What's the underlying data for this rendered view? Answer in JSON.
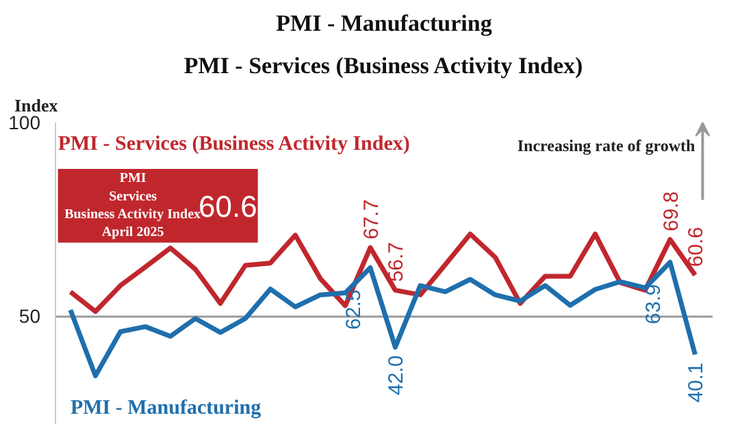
{
  "chart_data": {
    "type": "line",
    "title": "PMI - Manufacturing",
    "subtitle": "PMI - Services (Business Activity Index)",
    "ylabel": "Index",
    "categories": [
      null,
      null,
      null,
      null,
      null,
      null,
      null,
      null,
      null,
      null,
      null,
      null,
      null,
      null,
      null,
      null,
      null,
      null,
      null,
      null,
      null,
      null,
      null,
      null,
      null,
      null
    ],
    "series": [
      {
        "name": "PMI - Services (Business Activity Index)",
        "color": "#c0272d",
        "values": [
          56.3,
          51.2,
          57.9,
          62.7,
          67.6,
          62.1,
          53.3,
          63.1,
          63.7,
          70.9,
          59.7,
          52.7,
          67.7,
          56.7,
          55.5,
          63.3,
          71.2,
          65.2,
          53.3,
          60.3,
          60.3,
          71.2,
          58.7,
          56.7,
          69.8,
          60.6
        ],
        "value_labels": [
          null,
          null,
          null,
          null,
          null,
          null,
          null,
          null,
          null,
          null,
          null,
          null,
          "67.7",
          "56.7",
          null,
          null,
          null,
          null,
          null,
          null,
          null,
          null,
          null,
          null,
          "69.8",
          "60.6"
        ]
      },
      {
        "name": "PMI - Manufacturing",
        "color": "#1f6fad",
        "values": [
          51.6,
          34.6,
          46.0,
          47.3,
          44.8,
          49.4,
          45.8,
          49.4,
          57.0,
          52.4,
          55.5,
          56.0,
          62.5,
          42.0,
          57.9,
          56.3,
          59.5,
          55.5,
          53.9,
          57.9,
          52.8,
          56.9,
          58.9,
          57.3,
          63.9,
          40.1
        ],
        "value_labels": [
          null,
          null,
          null,
          null,
          null,
          null,
          null,
          null,
          null,
          null,
          null,
          null,
          "62.5",
          "42.0",
          null,
          null,
          null,
          null,
          null,
          null,
          null,
          null,
          null,
          null,
          "63.9",
          "40.1"
        ]
      }
    ],
    "ylim": [
      22,
      100
    ],
    "yticks": [
      50,
      100
    ],
    "grid": "y",
    "legend": false,
    "annotations": [
      "PMI\nServices\nBusiness Activity Index\nApril 2025",
      "60.6",
      "Increasing rate of growth"
    ]
  }
}
